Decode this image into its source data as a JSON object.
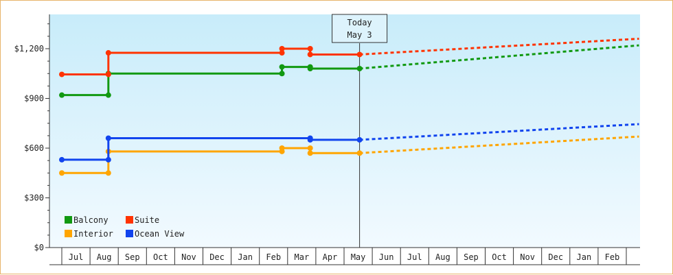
{
  "chart_data": {
    "type": "line",
    "style": "step-with-projection",
    "yticks": [
      0,
      300,
      600,
      900,
      1200
    ],
    "ytick_labels": [
      "$0",
      "$300",
      "$600",
      "$900",
      "$1,200"
    ],
    "ylim": [
      0,
      1400
    ],
    "months": [
      "Jul",
      "Aug",
      "Sep",
      "Oct",
      "Nov",
      "Dec",
      "Jan",
      "Feb",
      "Mar",
      "Apr",
      "May",
      "Jun",
      "Jul",
      "Aug",
      "Sep",
      "Oct",
      "Nov",
      "Dec",
      "Jan",
      "Feb"
    ],
    "today": {
      "line1": "Today",
      "line2": "May 3",
      "x": 10.05
    },
    "legend": {
      "position": "bottom-left"
    },
    "series": [
      {
        "name": "Balcony",
        "color": "#119911",
        "points": [
          [
            -0.5,
            920
          ],
          [
            1.15,
            920
          ],
          [
            1.15,
            1050
          ],
          [
            7.3,
            1050
          ],
          [
            7.3,
            1090
          ],
          [
            8.3,
            1090
          ],
          [
            8.3,
            1080
          ],
          [
            10.05,
            1080
          ]
        ],
        "projection": [
          [
            10.05,
            1080
          ],
          [
            19.95,
            1220
          ]
        ]
      },
      {
        "name": "Suite",
        "color": "#ff3300",
        "points": [
          [
            -0.5,
            1045
          ],
          [
            1.15,
            1045
          ],
          [
            1.15,
            1175
          ],
          [
            7.3,
            1175
          ],
          [
            7.3,
            1200
          ],
          [
            8.3,
            1200
          ],
          [
            8.3,
            1165
          ],
          [
            10.05,
            1165
          ]
        ],
        "projection": [
          [
            10.05,
            1165
          ],
          [
            19.95,
            1260
          ]
        ]
      },
      {
        "name": "Interior",
        "color": "#ffa500",
        "points": [
          [
            -0.5,
            450
          ],
          [
            1.15,
            450
          ],
          [
            1.15,
            580
          ],
          [
            7.3,
            580
          ],
          [
            7.3,
            600
          ],
          [
            8.3,
            600
          ],
          [
            8.3,
            570
          ],
          [
            10.05,
            570
          ]
        ],
        "projection": [
          [
            10.05,
            570
          ],
          [
            19.95,
            670
          ]
        ]
      },
      {
        "name": "Ocean View",
        "color": "#1144ee",
        "points": [
          [
            -0.5,
            530
          ],
          [
            1.15,
            530
          ],
          [
            1.15,
            660
          ],
          [
            8.3,
            660
          ],
          [
            8.3,
            650
          ],
          [
            10.05,
            650
          ]
        ],
        "projection": [
          [
            10.05,
            650
          ],
          [
            19.95,
            745
          ]
        ]
      }
    ]
  }
}
